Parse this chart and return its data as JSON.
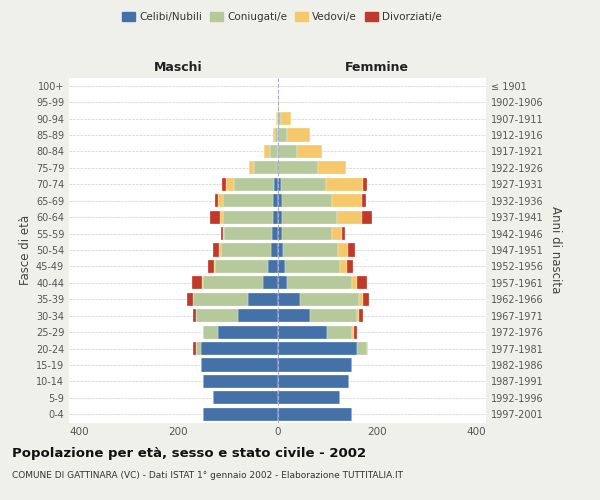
{
  "age_groups": [
    "0-4",
    "5-9",
    "10-14",
    "15-19",
    "20-24",
    "25-29",
    "30-34",
    "35-39",
    "40-44",
    "45-49",
    "50-54",
    "55-59",
    "60-64",
    "65-69",
    "70-74",
    "75-79",
    "80-84",
    "85-89",
    "90-94",
    "95-99",
    "100+"
  ],
  "birth_years": [
    "1997-2001",
    "1992-1996",
    "1987-1991",
    "1982-1986",
    "1977-1981",
    "1972-1976",
    "1967-1971",
    "1962-1966",
    "1957-1961",
    "1952-1956",
    "1947-1951",
    "1942-1946",
    "1937-1941",
    "1932-1936",
    "1927-1931",
    "1922-1926",
    "1917-1921",
    "1912-1916",
    "1907-1911",
    "1902-1906",
    "≤ 1901"
  ],
  "male": {
    "celibi": [
      150,
      130,
      150,
      155,
      155,
      120,
      80,
      60,
      30,
      20,
      14,
      12,
      10,
      10,
      8,
      2,
      0,
      0,
      0,
      0,
      0
    ],
    "coniugati": [
      0,
      0,
      0,
      0,
      10,
      30,
      85,
      110,
      120,
      105,
      100,
      95,
      100,
      100,
      80,
      45,
      15,
      5,
      2,
      0,
      0
    ],
    "vedovi": [
      0,
      0,
      0,
      0,
      0,
      0,
      0,
      0,
      2,
      2,
      4,
      2,
      5,
      10,
      15,
      10,
      12,
      5,
      2,
      0,
      0
    ],
    "divorziati": [
      0,
      0,
      0,
      0,
      5,
      0,
      5,
      12,
      20,
      12,
      12,
      5,
      20,
      5,
      8,
      0,
      0,
      0,
      0,
      0,
      0
    ]
  },
  "female": {
    "nubili": [
      150,
      125,
      145,
      150,
      160,
      100,
      65,
      45,
      20,
      15,
      12,
      10,
      10,
      10,
      8,
      2,
      0,
      0,
      0,
      0,
      0
    ],
    "coniugate": [
      0,
      0,
      0,
      0,
      20,
      50,
      95,
      120,
      130,
      110,
      110,
      100,
      110,
      100,
      90,
      80,
      40,
      20,
      8,
      2,
      0
    ],
    "vedove": [
      0,
      0,
      0,
      0,
      2,
      5,
      5,
      8,
      10,
      15,
      20,
      20,
      50,
      60,
      75,
      55,
      50,
      45,
      20,
      2,
      0
    ],
    "divorziate": [
      0,
      0,
      0,
      0,
      0,
      5,
      8,
      12,
      20,
      12,
      15,
      5,
      20,
      8,
      8,
      0,
      0,
      0,
      0,
      0,
      0
    ]
  },
  "colors": {
    "celibi": "#4472a8",
    "coniugati": "#b5c99a",
    "vedovi": "#f5c96b",
    "divorziati": "#c0392b"
  },
  "xlim": 420,
  "title": "Popolazione per età, sesso e stato civile - 2002",
  "subtitle": "COMUNE DI GATTINARA (VC) - Dati ISTAT 1° gennaio 2002 - Elaborazione TUTTITALIA.IT",
  "ylabel_left": "Fasce di età",
  "ylabel_right": "Anni di nascita",
  "xlabel_left": "Maschi",
  "xlabel_right": "Femmine",
  "bg_color": "#f0f0eb",
  "plot_bg": "#ffffff"
}
